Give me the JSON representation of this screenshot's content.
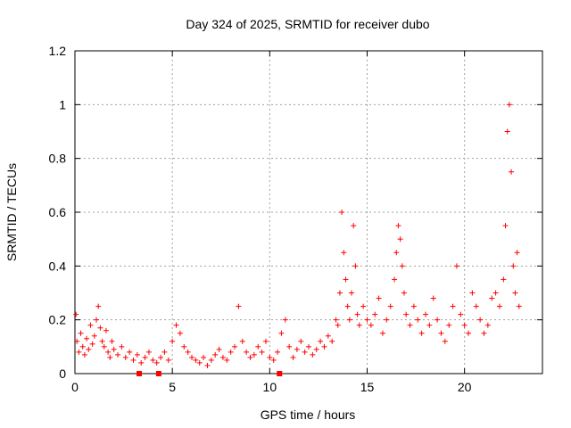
{
  "chart_data": {
    "type": "scatter",
    "title": "Day 324 of 2025, SRMTID for receiver dubo",
    "xlabel": "GPS time / hours",
    "ylabel": "SRMTID / TECUs",
    "xlim": [
      0,
      24
    ],
    "ylim": [
      0,
      1.2
    ],
    "xticks": [
      0,
      5,
      10,
      15,
      20
    ],
    "yticks": [
      0,
      0.2,
      0.4,
      0.6,
      0.8,
      1,
      1.2
    ],
    "xtick_labels": [
      "0",
      "5",
      "10",
      "15",
      "20"
    ],
    "ytick_labels": [
      "0",
      "0.2",
      "0.4",
      "0.6",
      "0.8",
      "1",
      "1.2"
    ],
    "grid": true,
    "marker": "+",
    "color": "#ff0000",
    "series": [
      {
        "name": "SRMTID",
        "x": [
          0.05,
          0.1,
          0.2,
          0.3,
          0.4,
          0.5,
          0.6,
          0.7,
          0.8,
          0.9,
          1.0,
          1.1,
          1.2,
          1.3,
          1.4,
          1.5,
          1.6,
          1.7,
          1.8,
          1.9,
          2.0,
          2.2,
          2.4,
          2.6,
          2.8,
          3.0,
          3.2,
          3.4,
          3.6,
          3.8,
          4.0,
          4.2,
          4.4,
          4.6,
          4.8,
          5.0,
          5.2,
          5.4,
          5.6,
          5.8,
          6.0,
          6.2,
          6.4,
          6.6,
          6.8,
          7.0,
          7.2,
          7.4,
          7.6,
          7.8,
          8.0,
          8.2,
          8.4,
          8.6,
          8.8,
          9.0,
          9.2,
          9.4,
          9.6,
          9.8,
          10.0,
          10.2,
          10.4,
          10.6,
          10.8,
          11.0,
          11.2,
          11.4,
          11.6,
          11.8,
          12.0,
          12.2,
          12.4,
          12.6,
          12.8,
          13.0,
          13.2,
          13.4,
          13.5,
          13.6,
          13.7,
          13.8,
          13.9,
          14.0,
          14.1,
          14.2,
          14.3,
          14.4,
          14.5,
          14.6,
          14.8,
          15.0,
          15.2,
          15.4,
          15.6,
          15.8,
          16.0,
          16.2,
          16.4,
          16.5,
          16.6,
          16.7,
          16.8,
          16.9,
          17.0,
          17.2,
          17.4,
          17.6,
          17.8,
          18.0,
          18.2,
          18.4,
          18.6,
          18.8,
          19.0,
          19.2,
          19.4,
          19.6,
          19.8,
          20.0,
          20.2,
          20.4,
          20.6,
          20.8,
          21.0,
          21.2,
          21.4,
          21.6,
          21.8,
          22.0,
          22.1,
          22.2,
          22.3,
          22.4,
          22.5,
          22.6,
          22.7,
          22.8
        ],
        "y": [
          0.22,
          0.12,
          0.08,
          0.15,
          0.1,
          0.07,
          0.13,
          0.09,
          0.18,
          0.11,
          0.14,
          0.2,
          0.25,
          0.17,
          0.12,
          0.1,
          0.16,
          0.08,
          0.06,
          0.12,
          0.09,
          0.07,
          0.1,
          0.06,
          0.08,
          0.05,
          0.07,
          0.04,
          0.06,
          0.08,
          0.05,
          0.04,
          0.06,
          0.08,
          0.05,
          0.12,
          0.18,
          0.15,
          0.1,
          0.08,
          0.06,
          0.05,
          0.04,
          0.06,
          0.03,
          0.05,
          0.07,
          0.09,
          0.06,
          0.05,
          0.08,
          0.1,
          0.25,
          0.12,
          0.08,
          0.06,
          0.07,
          0.1,
          0.08,
          0.12,
          0.06,
          0.05,
          0.08,
          0.15,
          0.2,
          0.1,
          0.06,
          0.09,
          0.12,
          0.08,
          0.1,
          0.07,
          0.09,
          0.12,
          0.1,
          0.14,
          0.12,
          0.2,
          0.18,
          0.3,
          0.6,
          0.45,
          0.35,
          0.25,
          0.2,
          0.3,
          0.55,
          0.4,
          0.22,
          0.18,
          0.25,
          0.2,
          0.18,
          0.22,
          0.28,
          0.15,
          0.2,
          0.25,
          0.35,
          0.45,
          0.55,
          0.5,
          0.4,
          0.3,
          0.22,
          0.18,
          0.25,
          0.2,
          0.15,
          0.22,
          0.18,
          0.28,
          0.2,
          0.15,
          0.12,
          0.18,
          0.25,
          0.4,
          0.22,
          0.18,
          0.15,
          0.3,
          0.25,
          0.2,
          0.15,
          0.18,
          0.28,
          0.3,
          0.25,
          0.35,
          0.55,
          0.9,
          1.0,
          0.75,
          0.4,
          0.3,
          0.45,
          0.25
        ]
      }
    ],
    "low_points": {
      "x": [
        3.3,
        4.3,
        10.5
      ],
      "y": [
        0,
        0,
        0
      ]
    }
  }
}
